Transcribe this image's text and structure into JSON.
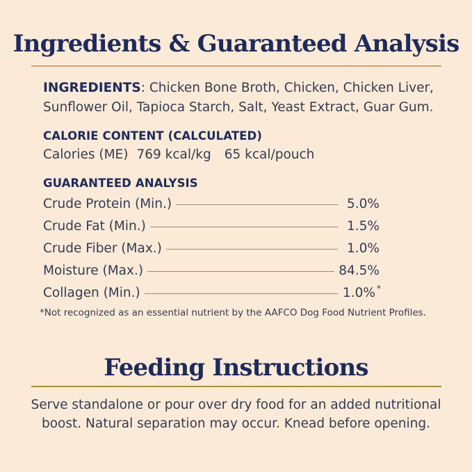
{
  "colors": {
    "background": "#fcead9",
    "heading_navy": "#1e2b5a",
    "body_text": "#343b4f",
    "rule_top_gold": "#c9a06a",
    "rule_bottom_gold": "#b1873e",
    "leader_line": "#8f8a82"
  },
  "header": {
    "title": "Ingredients & Guaranteed Analysis"
  },
  "ingredients": {
    "label": "INGREDIENTS",
    "line1": ": Chicken Bone Broth, Chicken, Chicken Liver,",
    "line2": "Sunflower Oil, Tapioca Starch, Salt, Yeast Extract, Guar Gum."
  },
  "calorie_content": {
    "heading": "CALORIE CONTENT (CALCULATED)",
    "label": "Calories (ME)",
    "per_kg": "769 kcal/kg",
    "per_pouch": "65 kcal/pouch"
  },
  "guaranteed_analysis": {
    "heading": "GUARANTEED ANALYSIS",
    "rows": [
      {
        "label": "Crude Protein (Min.)",
        "value": "5.0%",
        "marker": ""
      },
      {
        "label": "Crude Fat (Min.)",
        "value": "1.5%",
        "marker": ""
      },
      {
        "label": "Crude Fiber (Max.)",
        "value": "1.0%",
        "marker": ""
      },
      {
        "label": "Moisture (Max.)",
        "value": "84.5%",
        "marker": ""
      },
      {
        "label": "Collagen (Min.)",
        "value": "1.0%",
        "marker": "*"
      }
    ],
    "footnote": "*Not recognized as an essential nutrient by the AAFCO Dog Food Nutrient Profiles."
  },
  "feeding_instructions": {
    "title": "Feeding Instructions",
    "line1": "Serve standalone or pour over dry food for an added nutritional",
    "line2": "boost. Natural separation may occur. Knead before opening."
  }
}
